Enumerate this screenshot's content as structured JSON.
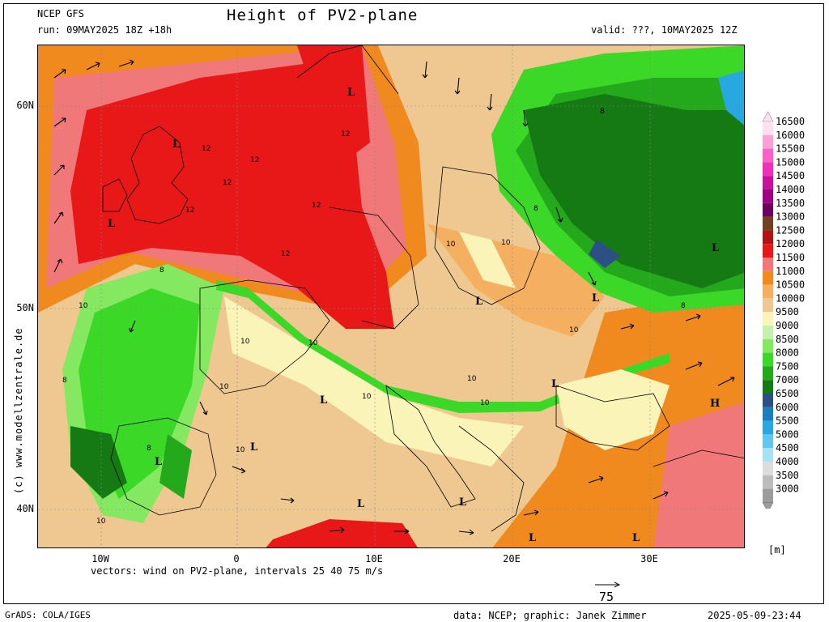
{
  "header": {
    "model": "NCEP GFS",
    "run": "run: 09MAY2025 18Z +18h",
    "title": "Height of PV2-plane",
    "valid": "valid: ???, 10MAY2025 12Z"
  },
  "axes": {
    "lat_labels": [
      "60N",
      "50N",
      "40N"
    ],
    "lon_labels": [
      "10W",
      "0",
      "10E",
      "20E",
      "30E"
    ]
  },
  "vectors_note": "vectors: wind on PV2-plane, intervals 25 40 75 m/s",
  "reference_vector": {
    "label": "75",
    "unit": "m/s"
  },
  "watermark": "(c) www.modellzentrale.de",
  "legend": {
    "units": "[m]",
    "levels": [
      {
        "value": "16500",
        "color": "#ffe0f0"
      },
      {
        "value": "16000",
        "color": "#ff9ed8"
      },
      {
        "value": "15500",
        "color": "#ff60c8"
      },
      {
        "value": "15000",
        "color": "#f030b8"
      },
      {
        "value": "14500",
        "color": "#c8109c"
      },
      {
        "value": "14000",
        "color": "#a00082"
      },
      {
        "value": "13500",
        "color": "#6e0060"
      },
      {
        "value": "13000",
        "color": "#704020"
      },
      {
        "value": "12500",
        "color": "#b01414"
      },
      {
        "value": "12000",
        "color": "#e81818"
      },
      {
        "value": "11500",
        "color": "#f07878"
      },
      {
        "value": "11000",
        "color": "#f08a1e"
      },
      {
        "value": "10500",
        "color": "#f4b060"
      },
      {
        "value": "10000",
        "color": "#eec890"
      },
      {
        "value": "9500",
        "color": "#fbf4b8"
      },
      {
        "value": "9000",
        "color": "#c6f0b0"
      },
      {
        "value": "8500",
        "color": "#84e860"
      },
      {
        "value": "8000",
        "color": "#3cd828"
      },
      {
        "value": "7500",
        "color": "#24a81c"
      },
      {
        "value": "7000",
        "color": "#167a14"
      },
      {
        "value": "6500",
        "color": "#2e4e86"
      },
      {
        "value": "6000",
        "color": "#1880c0"
      },
      {
        "value": "5500",
        "color": "#28a8e0"
      },
      {
        "value": "5000",
        "color": "#60c8f0"
      },
      {
        "value": "4500",
        "color": "#a8e0f6"
      },
      {
        "value": "4000",
        "color": "#dcdcdc"
      },
      {
        "value": "3500",
        "color": "#bcbcbc"
      },
      {
        "value": "3000",
        "color": "#9c9c9c"
      }
    ]
  },
  "map_labels": {
    "lows": [
      "L",
      "L",
      "L",
      "L",
      "L",
      "L",
      "L",
      "L",
      "L",
      "L",
      "L",
      "L",
      "L",
      "L"
    ],
    "highs": [
      "H"
    ],
    "contours": [
      "12",
      "12",
      "12",
      "12",
      "12",
      "12",
      "12",
      "10",
      "10",
      "10",
      "10",
      "10",
      "10",
      "10",
      "10",
      "10",
      "10",
      "10",
      "10",
      "8",
      "8",
      "8",
      "8",
      "8",
      "8"
    ]
  },
  "footer": {
    "left": "GrADS: COLA/IGES",
    "credits": "data: NCEP; graphic: Janek Zimmer",
    "timestamp": "2025-05-09-23:44"
  }
}
